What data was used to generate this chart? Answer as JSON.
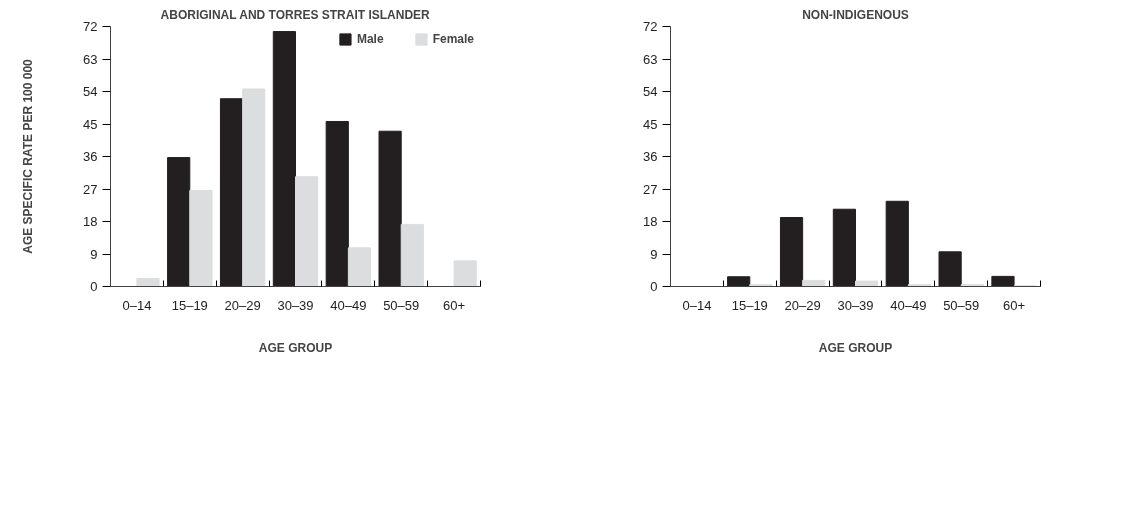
{
  "chart_data": [
    {
      "type": "bar",
      "title": "ABORIGINAL AND TORRES STRAIT ISLANDER",
      "xlabel": "AGE GROUP",
      "ylabel": "AGE SPECIFIC RATE PER 100 000",
      "legend": "top right",
      "categories": [
        "0–14",
        "15–19",
        "20–29",
        "30–39",
        "40–49",
        "50–59",
        "60+"
      ],
      "series": [
        {
          "name": "Male",
          "color": "#231f20",
          "values": [
            0,
            35.7,
            52.0,
            70.6,
            45.7,
            43.0,
            0
          ]
        },
        {
          "name": "Female",
          "color": "#dcddde",
          "values": [
            2.2,
            26.6,
            54.7,
            30.4,
            10.7,
            17.2,
            7.1
          ]
        }
      ],
      "ylim": [
        0,
        72
      ],
      "yticks": [
        0,
        9,
        18,
        27,
        36,
        45,
        54,
        63,
        72
      ]
    },
    {
      "type": "bar",
      "title": "NON-INDIGENOUS",
      "xlabel": "AGE GROUP",
      "categories": [
        "0–14",
        "15–19",
        "20–29",
        "30–39",
        "40–49",
        "50–59",
        "60+"
      ],
      "series": [
        {
          "color": "#231f20",
          "values": [
            0,
            2.7,
            19.1,
            21.4,
            23.6,
            9.6,
            2.8
          ]
        },
        {
          "color": "#dcddde",
          "values": [
            0,
            0.5,
            1.7,
            1.5,
            0.5,
            0.5,
            0.2
          ]
        }
      ],
      "ylim": [
        0,
        72
      ],
      "yticks": [
        0,
        9,
        18,
        27,
        36,
        45,
        54,
        63,
        72
      ]
    }
  ]
}
